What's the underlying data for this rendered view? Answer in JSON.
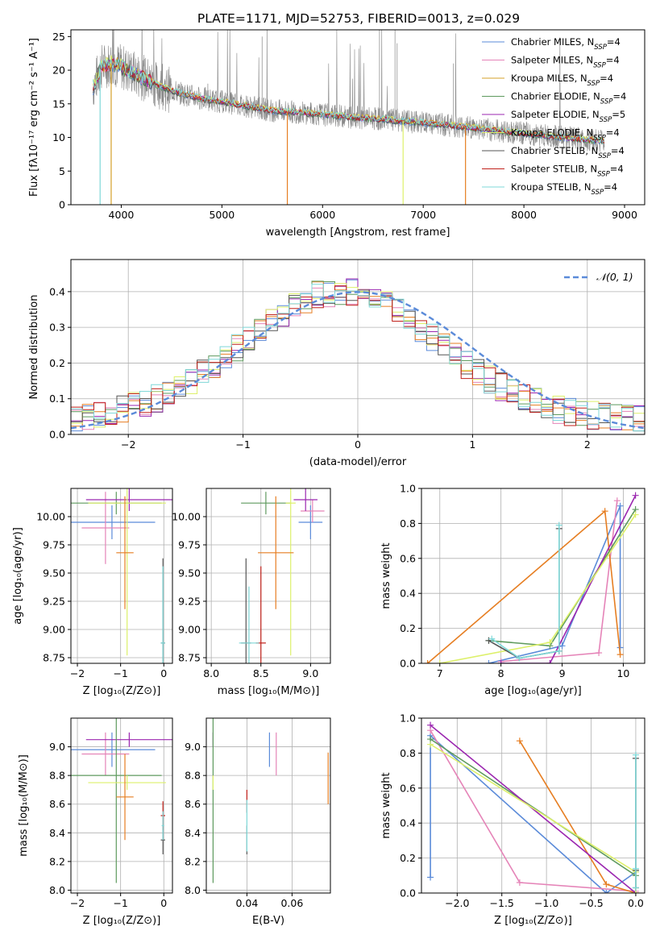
{
  "figure_title": "PLATE=1171, MJD=52753, FIBERID=0013, z=0.029",
  "colors": {
    "chabrier_miles": "#5b8bd9",
    "salpeter_miles": "#e584b8",
    "kroupa_miles": "#d4a02a",
    "chabrier_elodie": "#5e9a5e",
    "salpeter_elodie": "#9b27b0",
    "kroupa_elodie": "#ddf06a",
    "chabrier_stelib": "#555555",
    "salpeter_stelib": "#c0201a",
    "kroupa_stelib": "#7fd8d8",
    "data": "#888888",
    "orange": "#e67e22",
    "gaussian": "#5b8bd9"
  },
  "chart_data": [
    {
      "id": "spectrum",
      "type": "line",
      "xlabel": "wavelength [Angstrom, rest frame]",
      "ylabel": "Flux [fλ10⁻¹⁷ erg cm⁻² s⁻¹ A⁻¹]",
      "xlim": [
        3500,
        9200
      ],
      "ylim": [
        0,
        26
      ],
      "xticks": [
        4000,
        5000,
        6000,
        7000,
        8000,
        9000
      ],
      "yticks": [
        0,
        5,
        10,
        15,
        20,
        25
      ],
      "legend_position": "top-right",
      "legend": [
        {
          "label": "Chabrier MILES, N",
          "sub": "SSP",
          "n": "=4",
          "color": "#5b8bd9"
        },
        {
          "label": "Salpeter MILES, N",
          "sub": "SSP",
          "n": "=4",
          "color": "#e584b8"
        },
        {
          "label": "Kroupa MILES, N",
          "sub": "SSP",
          "n": "=4",
          "color": "#d4a02a"
        },
        {
          "label": "Chabrier ELODIE, N",
          "sub": "SSP",
          "n": "=4",
          "color": "#5e9a5e"
        },
        {
          "label": "Salpeter ELODIE, N",
          "sub": "SSP",
          "n": "=5",
          "color": "#9b27b0"
        },
        {
          "label": "Kroupa ELODIE, N",
          "sub": "SSP",
          "n": "=4",
          "color": "#ddf06a"
        },
        {
          "label": "Chabrier STELIB, N",
          "sub": "SSP",
          "n": "=4",
          "color": "#555555"
        },
        {
          "label": "Salpeter STELIB, N",
          "sub": "SSP",
          "n": "=4",
          "color": "#c0201a"
        },
        {
          "label": "Kroupa STELIB, N",
          "sub": "SSP",
          "n": "=4",
          "color": "#7fd8d8"
        }
      ],
      "continuum": [
        [
          3720,
          17.5
        ],
        [
          3800,
          20.5
        ],
        [
          3900,
          21
        ],
        [
          4000,
          20.5
        ],
        [
          4200,
          19
        ],
        [
          4400,
          17.5
        ],
        [
          4600,
          16.5
        ],
        [
          4800,
          15.8
        ],
        [
          5000,
          15.3
        ],
        [
          5200,
          14.8
        ],
        [
          5500,
          14
        ],
        [
          5800,
          13.7
        ],
        [
          6000,
          13.4
        ],
        [
          6300,
          13
        ],
        [
          6600,
          12.7
        ],
        [
          7000,
          12.2
        ],
        [
          7400,
          11.6
        ],
        [
          7800,
          10.9
        ],
        [
          8200,
          10.3
        ],
        [
          8600,
          9.7
        ],
        [
          8800,
          9.5
        ]
      ],
      "model_drops": [
        {
          "x": 3900,
          "color": "#d4a02a"
        },
        {
          "x": 5650,
          "color": "#e67e22"
        },
        {
          "x": 6800,
          "color": "#ddf06a"
        },
        {
          "x": 7420,
          "color": "#e67e22"
        },
        {
          "x": 3790,
          "color": "#7fd8d8"
        }
      ]
    },
    {
      "id": "residuals",
      "type": "bar",
      "xlabel": "(data-model)/error",
      "ylabel": "Normed distribution",
      "xlim": [
        -2.5,
        2.5
      ],
      "ylim": [
        0,
        0.49
      ],
      "xticks": [
        -2,
        -1,
        0,
        1,
        2
      ],
      "yticks": [
        0.0,
        0.1,
        0.2,
        0.3,
        0.4
      ],
      "grid": true,
      "legend_position": "top-right",
      "legend_label": "𝒩(0, 1)",
      "bin_width": 0.1,
      "bin_start": -2.6
    },
    {
      "id": "age_vs_Z",
      "type": "scatter",
      "xlabel": "Z [log₁₀(Z/Z⊙)]",
      "ylabel": "age  [log₁₀(age/yr)]",
      "xlim": [
        -2.15,
        0.2
      ],
      "ylim": [
        8.7,
        10.25
      ],
      "xticks": [
        -2,
        -1,
        0
      ],
      "yticks": [
        8.75,
        9.0,
        9.25,
        9.5,
        9.75,
        10.0
      ],
      "grid": true,
      "points": [
        {
          "x": -1.2,
          "xerr": 1.0,
          "y": 9.95,
          "yerr": 0.15,
          "color": "#5b8bd9"
        },
        {
          "x": -1.35,
          "xerr": 0.55,
          "y": 9.9,
          "yerr": 0.32,
          "color": "#e584b8"
        },
        {
          "x": -1.1,
          "xerr": 1.05,
          "y": 10.12,
          "yerr": 0.1,
          "color": "#5e9a5e"
        },
        {
          "x": -0.8,
          "xerr": 1.0,
          "y": 10.15,
          "yerr": 0.1,
          "color": "#9b27b0"
        },
        {
          "x": -0.85,
          "xerr": 0.9,
          "y": 10.12,
          "yerr": 1.35,
          "color": "#ddf06a"
        },
        {
          "x": -0.9,
          "xerr": 0.2,
          "y": 9.68,
          "yerr": 0.5,
          "color": "#e67e22"
        },
        {
          "x": -0.02,
          "xerr": 0.05,
          "y": 8.88,
          "yerr": 0.75,
          "color": "#555555"
        },
        {
          "x": -0.02,
          "xerr": 0.05,
          "y": 8.88,
          "yerr": 0.68,
          "color": "#7fd8d8"
        }
      ]
    },
    {
      "id": "age_vs_mass",
      "type": "scatter",
      "xlabel": "mass [log₁₀(M/M⊙)]",
      "ylabel": "",
      "xlim": [
        7.95,
        9.2
      ],
      "ylim": [
        8.7,
        10.25
      ],
      "xticks": [
        8.0,
        8.5,
        9.0
      ],
      "yticks": [
        8.75,
        9.0,
        9.25,
        9.5,
        9.75,
        10.0
      ],
      "grid": true,
      "points": [
        {
          "x": 9.0,
          "xerr": 0.12,
          "y": 9.95,
          "yerr": 0.15,
          "color": "#5b8bd9"
        },
        {
          "x": 9.02,
          "xerr": 0.12,
          "y": 10.05,
          "yerr": 0.1,
          "color": "#e584b8"
        },
        {
          "x": 8.95,
          "xerr": 0.12,
          "y": 10.15,
          "yerr": 0.1,
          "color": "#9b27b0"
        },
        {
          "x": 8.55,
          "xerr": 0.25,
          "y": 10.12,
          "yerr": 0.1,
          "color": "#5e9a5e"
        },
        {
          "x": 8.8,
          "xerr": 0.05,
          "y": 10.12,
          "yerr": 1.35,
          "color": "#ddf06a"
        },
        {
          "x": 8.65,
          "xerr": 0.18,
          "y": 9.68,
          "yerr": 0.5,
          "color": "#e67e22"
        },
        {
          "x": 8.35,
          "xerr": 0.05,
          "y": 8.88,
          "yerr": 0.75,
          "color": "#555555"
        },
        {
          "x": 8.5,
          "xerr": 0.05,
          "y": 8.88,
          "yerr": 0.68,
          "color": "#c0201a"
        },
        {
          "x": 8.38,
          "xerr": 0.1,
          "y": 8.88,
          "yerr": 0.5,
          "color": "#7fd8d8"
        }
      ]
    },
    {
      "id": "weight_vs_age",
      "type": "line",
      "xlabel": "age  [log₁₀(age/yr)]",
      "ylabel": "mass weight",
      "xlim": [
        6.7,
        10.35
      ],
      "ylim": [
        0,
        1.0
      ],
      "xticks": [
        7,
        8,
        9,
        10
      ],
      "yticks": [
        0.0,
        0.2,
        0.4,
        0.6,
        0.8,
        1.0
      ],
      "grid": true,
      "series": [
        {
          "color": "#5b8bd9",
          "x": [
            7.8,
            9.0,
            9.95,
            9.95
          ],
          "y": [
            0.0,
            0.1,
            0.9,
            0.09
          ]
        },
        {
          "color": "#e584b8",
          "x": [
            8.0,
            9.6,
            9.9
          ],
          "y": [
            0.01,
            0.06,
            0.93
          ]
        },
        {
          "color": "#e67e22",
          "x": [
            6.8,
            9.7,
            9.95
          ],
          "y": [
            0.0,
            0.87,
            0.05
          ]
        },
        {
          "color": "#5e9a5e",
          "x": [
            7.8,
            8.8,
            10.2
          ],
          "y": [
            0.13,
            0.1,
            0.88
          ]
        },
        {
          "color": "#9b27b0",
          "x": [
            8.0,
            8.8,
            10.2
          ],
          "y": [
            0.0,
            0.0,
            0.96
          ]
        },
        {
          "color": "#ddf06a",
          "x": [
            7.0,
            8.8,
            10.2
          ],
          "y": [
            0.0,
            0.12,
            0.85
          ]
        },
        {
          "color": "#555555",
          "x": [
            7.8,
            8.3,
            8.95,
            8.95
          ],
          "y": [
            0.13,
            0.03,
            0.07,
            0.77
          ]
        },
        {
          "color": "#7fd8d8",
          "x": [
            7.85,
            8.3,
            8.95,
            8.95
          ],
          "y": [
            0.14,
            0.03,
            0.07,
            0.79
          ]
        }
      ]
    },
    {
      "id": "mass_vs_Z",
      "type": "scatter",
      "xlabel": "Z [log₁₀(Z/Z⊙)]",
      "ylabel": "mass [log₁₀(M/M⊙)]",
      "xlim": [
        -2.15,
        0.2
      ],
      "ylim": [
        7.98,
        9.2
      ],
      "xticks": [
        -2,
        -1,
        0
      ],
      "yticks": [
        8.0,
        8.2,
        8.4,
        8.6,
        8.8,
        9.0
      ],
      "grid": true,
      "points": [
        {
          "x": -1.2,
          "xerr": 1.0,
          "y": 8.98,
          "yerr": 0.12,
          "color": "#5b8bd9"
        },
        {
          "x": -1.35,
          "xerr": 0.55,
          "y": 8.95,
          "yerr": 0.15,
          "color": "#e584b8"
        },
        {
          "x": -0.8,
          "xerr": 1.0,
          "y": 9.05,
          "yerr": 0.05,
          "color": "#9b27b0"
        },
        {
          "x": -1.1,
          "xerr": 1.05,
          "y": 8.8,
          "yerr": 0.75,
          "color": "#5e9a5e"
        },
        {
          "x": -0.85,
          "xerr": 0.9,
          "y": 8.75,
          "yerr": 0.05,
          "color": "#ddf06a"
        },
        {
          "x": -0.9,
          "xerr": 0.2,
          "y": 8.65,
          "yerr": 0.3,
          "color": "#e67e22"
        },
        {
          "x": -0.02,
          "xerr": 0.05,
          "y": 8.35,
          "yerr": 0.1,
          "color": "#555555"
        },
        {
          "x": -0.02,
          "xerr": 0.05,
          "y": 8.52,
          "yerr": 0.1,
          "color": "#c0201a"
        },
        {
          "x": -0.02,
          "xerr": 0.03,
          "y": 8.45,
          "yerr": 0.1,
          "color": "#7fd8d8"
        }
      ]
    },
    {
      "id": "mass_vs_ebv",
      "type": "scatter",
      "xlabel": "E(B-V)",
      "ylabel": "",
      "xlim": [
        0.022,
        0.077
      ],
      "ylim": [
        7.98,
        9.2
      ],
      "xticks": [
        0.04,
        0.06
      ],
      "yticks": [
        8.0,
        8.2,
        8.4,
        8.6,
        8.8,
        9.0
      ],
      "grid": true,
      "points": [
        {
          "x": 0.05,
          "xerr": 0,
          "y": 8.98,
          "yerr": 0.12,
          "color": "#5b8bd9"
        },
        {
          "x": 0.053,
          "xerr": 0,
          "y": 8.95,
          "yerr": 0.15,
          "color": "#e584b8"
        },
        {
          "x": 0.025,
          "xerr": 0,
          "y": 9.05,
          "yerr": 0.05,
          "color": "#9b27b0"
        },
        {
          "x": 0.025,
          "xerr": 0,
          "y": 8.8,
          "yerr": 0.75,
          "color": "#5e9a5e"
        },
        {
          "x": 0.025,
          "xerr": 0,
          "y": 8.75,
          "yerr": 0.05,
          "color": "#ddf06a"
        },
        {
          "x": 0.076,
          "xerr": 0,
          "y": 8.78,
          "yerr": 0.18,
          "color": "#e67e22"
        },
        {
          "x": 0.04,
          "xerr": 0,
          "y": 8.35,
          "yerr": 0.1,
          "color": "#555555"
        },
        {
          "x": 0.04,
          "xerr": 0,
          "y": 8.62,
          "yerr": 0.08,
          "color": "#c0201a"
        },
        {
          "x": 0.04,
          "xerr": 0,
          "y": 8.45,
          "yerr": 0.18,
          "color": "#7fd8d8"
        }
      ]
    },
    {
      "id": "weight_vs_Z",
      "type": "line",
      "xlabel": "Z [log₁₀(Z/Z⊙)]",
      "ylabel": "mass weight",
      "xlim": [
        -2.4,
        0.1
      ],
      "ylim": [
        0,
        1.0
      ],
      "xticks": [
        -2.0,
        -1.5,
        -1.0,
        -0.5,
        0.0
      ],
      "yticks": [
        0.0,
        0.2,
        0.4,
        0.6,
        0.8,
        1.0
      ],
      "grid": true,
      "series": [
        {
          "color": "#5b8bd9",
          "x": [
            -2.3,
            -2.3,
            -0.33,
            0.0
          ],
          "y": [
            0.09,
            0.9,
            0.0,
            0.12
          ]
        },
        {
          "color": "#e584b8",
          "x": [
            -2.3,
            -1.3,
            0.0
          ],
          "y": [
            0.93,
            0.06,
            0.01
          ]
        },
        {
          "color": "#e67e22",
          "x": [
            -1.3,
            -0.33,
            0.0
          ],
          "y": [
            0.87,
            0.05,
            0.0
          ]
        },
        {
          "color": "#5e9a5e",
          "x": [
            -2.3,
            0.0,
            0.0
          ],
          "y": [
            0.88,
            0.1,
            0.13
          ]
        },
        {
          "color": "#9b27b0",
          "x": [
            -2.3,
            0.0
          ],
          "y": [
            0.96,
            0.0
          ]
        },
        {
          "color": "#ddf06a",
          "x": [
            -2.3,
            0.0,
            0.0
          ],
          "y": [
            0.85,
            0.12,
            0.0
          ]
        },
        {
          "color": "#555555",
          "x": [
            0.0,
            0.0,
            0.0
          ],
          "y": [
            0.77,
            0.03,
            0.13
          ]
        },
        {
          "color": "#7fd8d8",
          "x": [
            0.0,
            0.0,
            0.0
          ],
          "y": [
            0.79,
            0.03,
            0.14
          ]
        }
      ]
    }
  ]
}
